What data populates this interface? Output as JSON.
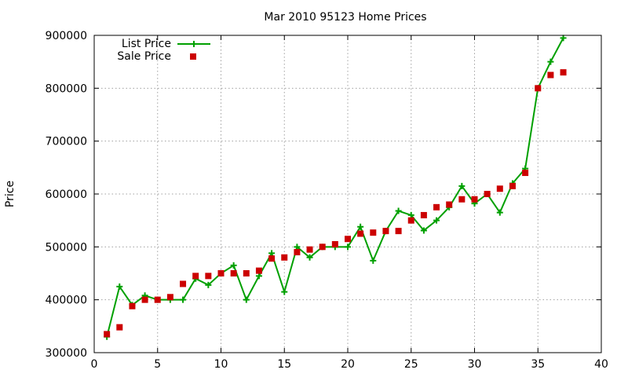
{
  "chart_data": {
    "type": "line",
    "title": "Mar 2010 95123 Home Prices",
    "xlabel": "",
    "ylabel": "Price",
    "xlim": [
      0,
      40
    ],
    "ylim": [
      300000,
      900000
    ],
    "x_ticks": [
      0,
      5,
      10,
      15,
      20,
      25,
      30,
      35,
      40
    ],
    "y_ticks": [
      300000,
      400000,
      500000,
      600000,
      700000,
      800000,
      900000
    ],
    "grid": true,
    "legend_position": "top-left",
    "series": [
      {
        "name": "List Price",
        "style": "line+cross",
        "color": "#00a000",
        "x": [
          1,
          2,
          3,
          4,
          5,
          6,
          7,
          8,
          9,
          10,
          11,
          12,
          13,
          14,
          15,
          16,
          17,
          18,
          19,
          20,
          21,
          22,
          23,
          24,
          25,
          26,
          27,
          28,
          29,
          30,
          31,
          32,
          33,
          34,
          35,
          36,
          37
        ],
        "y": [
          330000,
          425000,
          390000,
          408000,
          400000,
          400000,
          400000,
          440000,
          428000,
          450000,
          465000,
          400000,
          445000,
          488000,
          415000,
          500000,
          480000,
          500000,
          500000,
          500000,
          538000,
          474000,
          530000,
          568000,
          560000,
          531000,
          550000,
          575000,
          615000,
          582000,
          600000,
          565000,
          620000,
          648000,
          800000,
          850000,
          895000
        ]
      },
      {
        "name": "Sale Price",
        "style": "square-markers",
        "color": "#cc0000",
        "x": [
          1,
          2,
          3,
          4,
          5,
          6,
          7,
          8,
          9,
          10,
          11,
          12,
          13,
          14,
          15,
          16,
          17,
          18,
          19,
          20,
          21,
          22,
          23,
          24,
          25,
          26,
          27,
          28,
          29,
          30,
          31,
          32,
          33,
          34,
          35,
          36,
          37
        ],
        "y": [
          335000,
          348000,
          388000,
          400000,
          400000,
          405000,
          430000,
          445000,
          445000,
          450000,
          450000,
          450000,
          455000,
          478000,
          480000,
          490000,
          495000,
          500000,
          505000,
          515000,
          525000,
          527000,
          530000,
          530000,
          550000,
          560000,
          575000,
          580000,
          590000,
          590000,
          600000,
          610000,
          615000,
          640000,
          800000,
          825000,
          830000
        ]
      }
    ]
  }
}
